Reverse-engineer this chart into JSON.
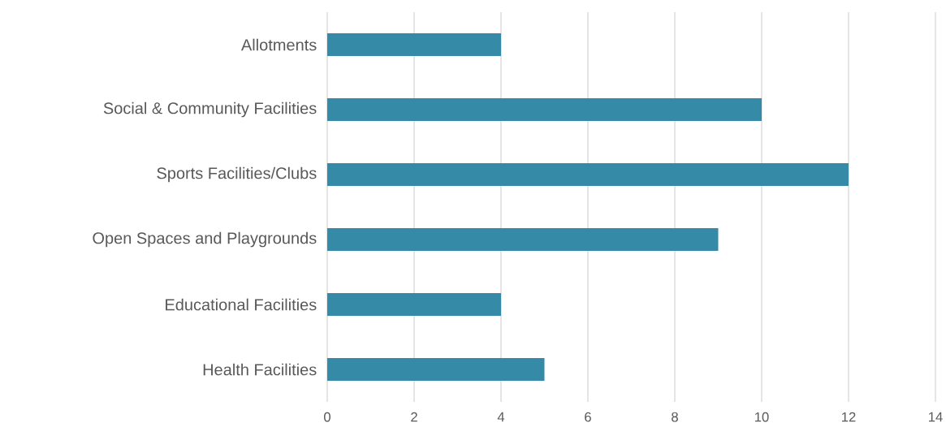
{
  "chart_data": {
    "type": "bar",
    "orientation": "horizontal",
    "categories": [
      "Allotments",
      "Social & Community Facilities",
      "Sports Facilities/Clubs",
      "Open Spaces and Playgrounds",
      "Educational Facilities",
      "Health Facilities"
    ],
    "values": [
      4,
      10,
      12,
      9,
      4,
      5
    ],
    "color": "#348aa7",
    "xlim": [
      0,
      14
    ],
    "xticks": [
      0,
      2,
      4,
      6,
      8,
      10,
      12,
      14
    ],
    "grid": "x"
  }
}
